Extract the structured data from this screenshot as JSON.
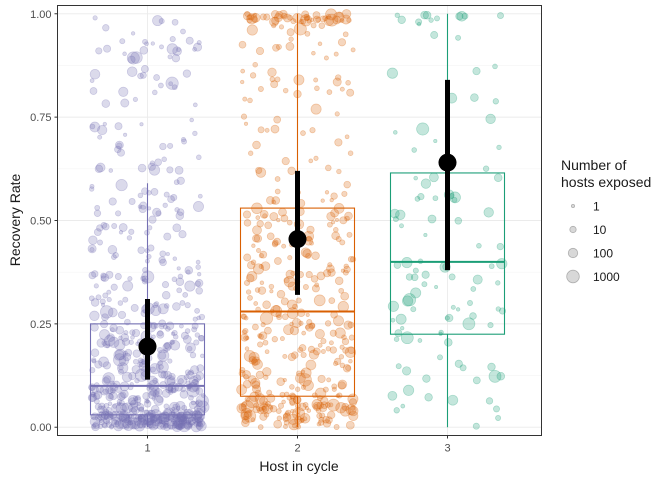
{
  "chart_data": {
    "type": "box-jitter",
    "xlabel": "Host in cycle",
    "ylabel": "Recovery Rate",
    "categories": [
      "1",
      "2",
      "3"
    ],
    "ylim": [
      -0.02,
      1.02
    ],
    "yticks": [
      0.0,
      0.25,
      0.5,
      0.75,
      1.0
    ],
    "ytick_labels": [
      "0.00",
      "0.25",
      "0.50",
      "0.75",
      "1.00"
    ],
    "colors": [
      "#7570b3",
      "#d95f02",
      "#1b9e77"
    ],
    "grid": true,
    "boxes": [
      {
        "category": "1",
        "lower_whisker": 0.0,
        "q1": 0.03,
        "median": 0.1,
        "q3": 0.25,
        "upper_whisker": 0.59
      },
      {
        "category": "2",
        "lower_whisker": 0.0,
        "q1": 0.075,
        "median": 0.28,
        "q3": 0.53,
        "upper_whisker": 1.0
      },
      {
        "category": "3",
        "lower_whisker": 0.0,
        "q1": 0.225,
        "median": 0.4,
        "q3": 0.615,
        "upper_whisker": 1.0
      }
    ],
    "summary": [
      {
        "category": "1",
        "mean": 0.195,
        "lower": 0.115,
        "upper": 0.31
      },
      {
        "category": "2",
        "mean": 0.455,
        "lower": 0.32,
        "upper": 0.62
      },
      {
        "category": "3",
        "mean": 0.64,
        "lower": 0.38,
        "upper": 0.84
      }
    ],
    "point_counts": [
      650,
      460,
      110
    ],
    "legend": {
      "title": "Number of\nhosts exposed",
      "position": "right",
      "entries": [
        {
          "label": "1",
          "value": 1
        },
        {
          "label": "10",
          "value": 10
        },
        {
          "label": "100",
          "value": 100
        },
        {
          "label": "1000",
          "value": 1000
        }
      ]
    }
  }
}
